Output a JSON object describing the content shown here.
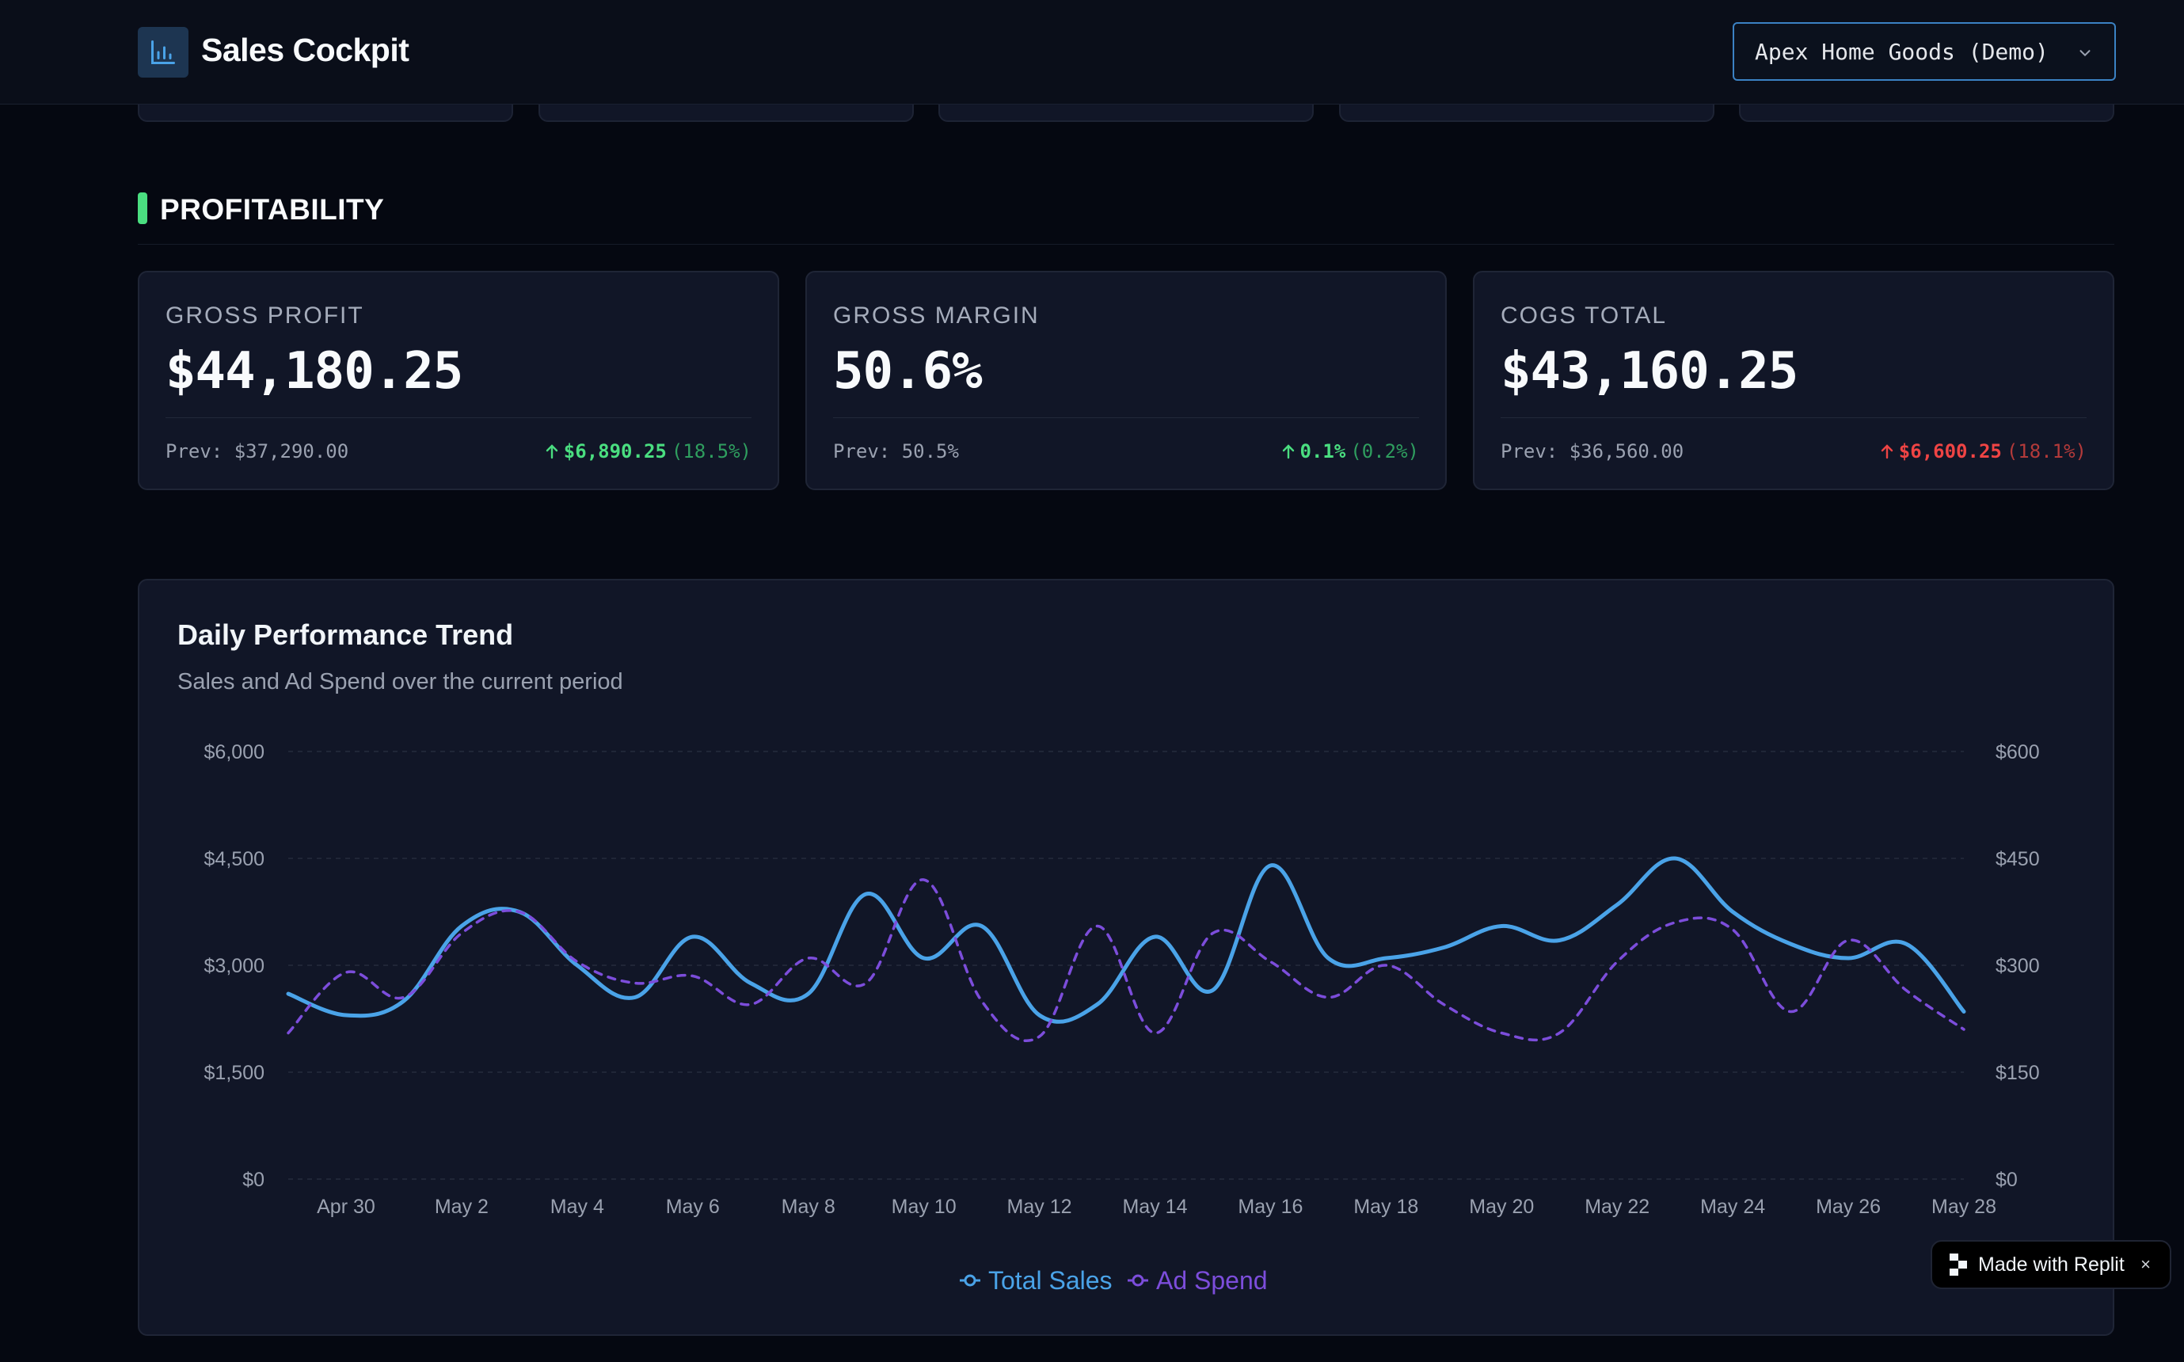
{
  "header": {
    "title": "Sales Cockpit",
    "brand_icon": "bar-chart-icon",
    "store_selector": {
      "value": "Apex Home Goods (Demo)",
      "icon": "chevron-down-icon"
    }
  },
  "section": {
    "title": "PROFITABILITY",
    "accent_color": "#4ade80"
  },
  "kpis": [
    {
      "label": "GROSS PROFIT",
      "value": "$44,180.25",
      "prev": "Prev: $37,290.00",
      "change": "$6,890.25",
      "change_pct": "(18.5%)",
      "direction": "up",
      "sentiment": "positive"
    },
    {
      "label": "GROSS MARGIN",
      "value": "50.6%",
      "prev": "Prev: 50.5%",
      "change": "0.1%",
      "change_pct": "(0.2%)",
      "direction": "up",
      "sentiment": "positive"
    },
    {
      "label": "COGS TOTAL",
      "value": "$43,160.25",
      "prev": "Prev: $36,560.00",
      "change": "$6,600.25",
      "change_pct": "(18.1%)",
      "direction": "up",
      "sentiment": "negative"
    }
  ],
  "chart": {
    "title": "Daily Performance Trend",
    "subtitle": "Sales and Ad Spend over the current period"
  },
  "chart_data": {
    "type": "line",
    "x": [
      "Apr 29",
      "Apr 30",
      "May 1",
      "May 2",
      "May 3",
      "May 4",
      "May 5",
      "May 6",
      "May 7",
      "May 8",
      "May 9",
      "May 10",
      "May 11",
      "May 12",
      "May 13",
      "May 14",
      "May 15",
      "May 16",
      "May 17",
      "May 18",
      "May 19",
      "May 20",
      "May 21",
      "May 22",
      "May 23",
      "May 24",
      "May 25",
      "May 26",
      "May 27",
      "May 28"
    ],
    "x_tick_labels": [
      "Apr 30",
      "May 2",
      "May 4",
      "May 6",
      "May 8",
      "May 10",
      "May 12",
      "May 14",
      "May 16",
      "May 18",
      "May 20",
      "May 22",
      "May 24",
      "May 26",
      "May 28"
    ],
    "series": [
      {
        "name": "Total Sales",
        "axis": "left",
        "color": "#4aa3e8",
        "style": "solid",
        "values": [
          2600,
          2300,
          2500,
          3550,
          3750,
          3000,
          2550,
          3400,
          2750,
          2600,
          4000,
          3100,
          3550,
          2300,
          2450,
          3400,
          2650,
          4400,
          3100,
          3100,
          3250,
          3550,
          3350,
          3850,
          4500,
          3750,
          3300,
          3100,
          3300,
          2350
        ]
      },
      {
        "name": "Ad Spend",
        "axis": "right",
        "color": "#7c4ddb",
        "style": "dashed",
        "values": [
          205,
          290,
          255,
          345,
          375,
          305,
          275,
          285,
          245,
          310,
          275,
          420,
          250,
          200,
          355,
          205,
          345,
          305,
          255,
          300,
          245,
          205,
          205,
          305,
          360,
          350,
          235,
          335,
          265,
          210
        ]
      }
    ],
    "y_left": {
      "ticks": [
        "$0",
        "$1,500",
        "$3,000",
        "$4,500",
        "$6,000"
      ],
      "range": [
        0,
        6000
      ]
    },
    "y_right": {
      "ticks": [
        "$0",
        "$150",
        "$300",
        "$450",
        "$600"
      ],
      "range": [
        0,
        600
      ]
    },
    "grid": true,
    "legend": "bottom-center"
  },
  "badge": {
    "label": "Made with Replit",
    "close": "×"
  }
}
